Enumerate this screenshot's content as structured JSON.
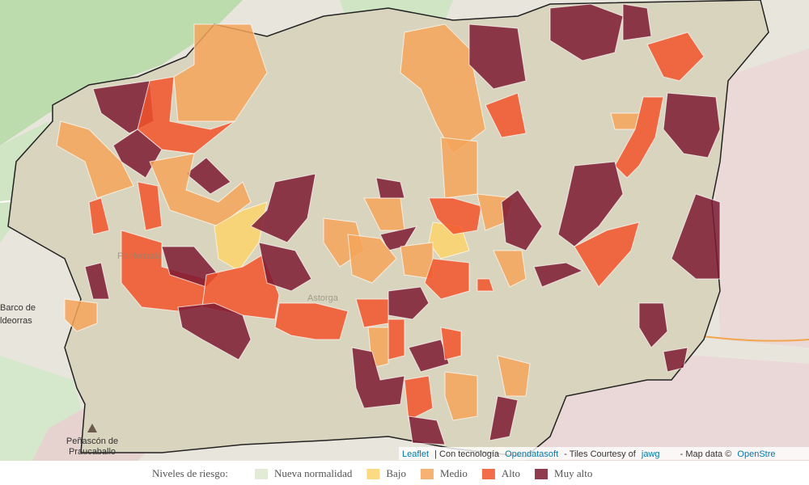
{
  "map": {
    "labels": [
      {
        "text": "Barco de"
      },
      {
        "text": "ldeorras"
      },
      {
        "text": "Ponferrada"
      },
      {
        "text": "Astorga"
      },
      {
        "text": "Peñascón de"
      },
      {
        "text": "Praucaballo"
      }
    ]
  },
  "attribution": {
    "leaflet": "Leaflet",
    "powered": "| Con tecnología",
    "opendatasoft": "Opendatasoft",
    "tiles": "- Tiles Courtesy of",
    "jawg": "jawg",
    "mapdata": "- Map data ©",
    "osm": "OpenStre"
  },
  "legend": {
    "title": "Niveles de riesgo:",
    "items": [
      {
        "label": "Nueva normalidad",
        "color": "#dce8cf"
      },
      {
        "label": "Bajo",
        "color": "#fbd36b"
      },
      {
        "label": "Medio",
        "color": "#f4a45b"
      },
      {
        "label": "Alto",
        "color": "#f2532a"
      },
      {
        "label": "Muy alto",
        "color": "#7b1a33"
      }
    ]
  }
}
